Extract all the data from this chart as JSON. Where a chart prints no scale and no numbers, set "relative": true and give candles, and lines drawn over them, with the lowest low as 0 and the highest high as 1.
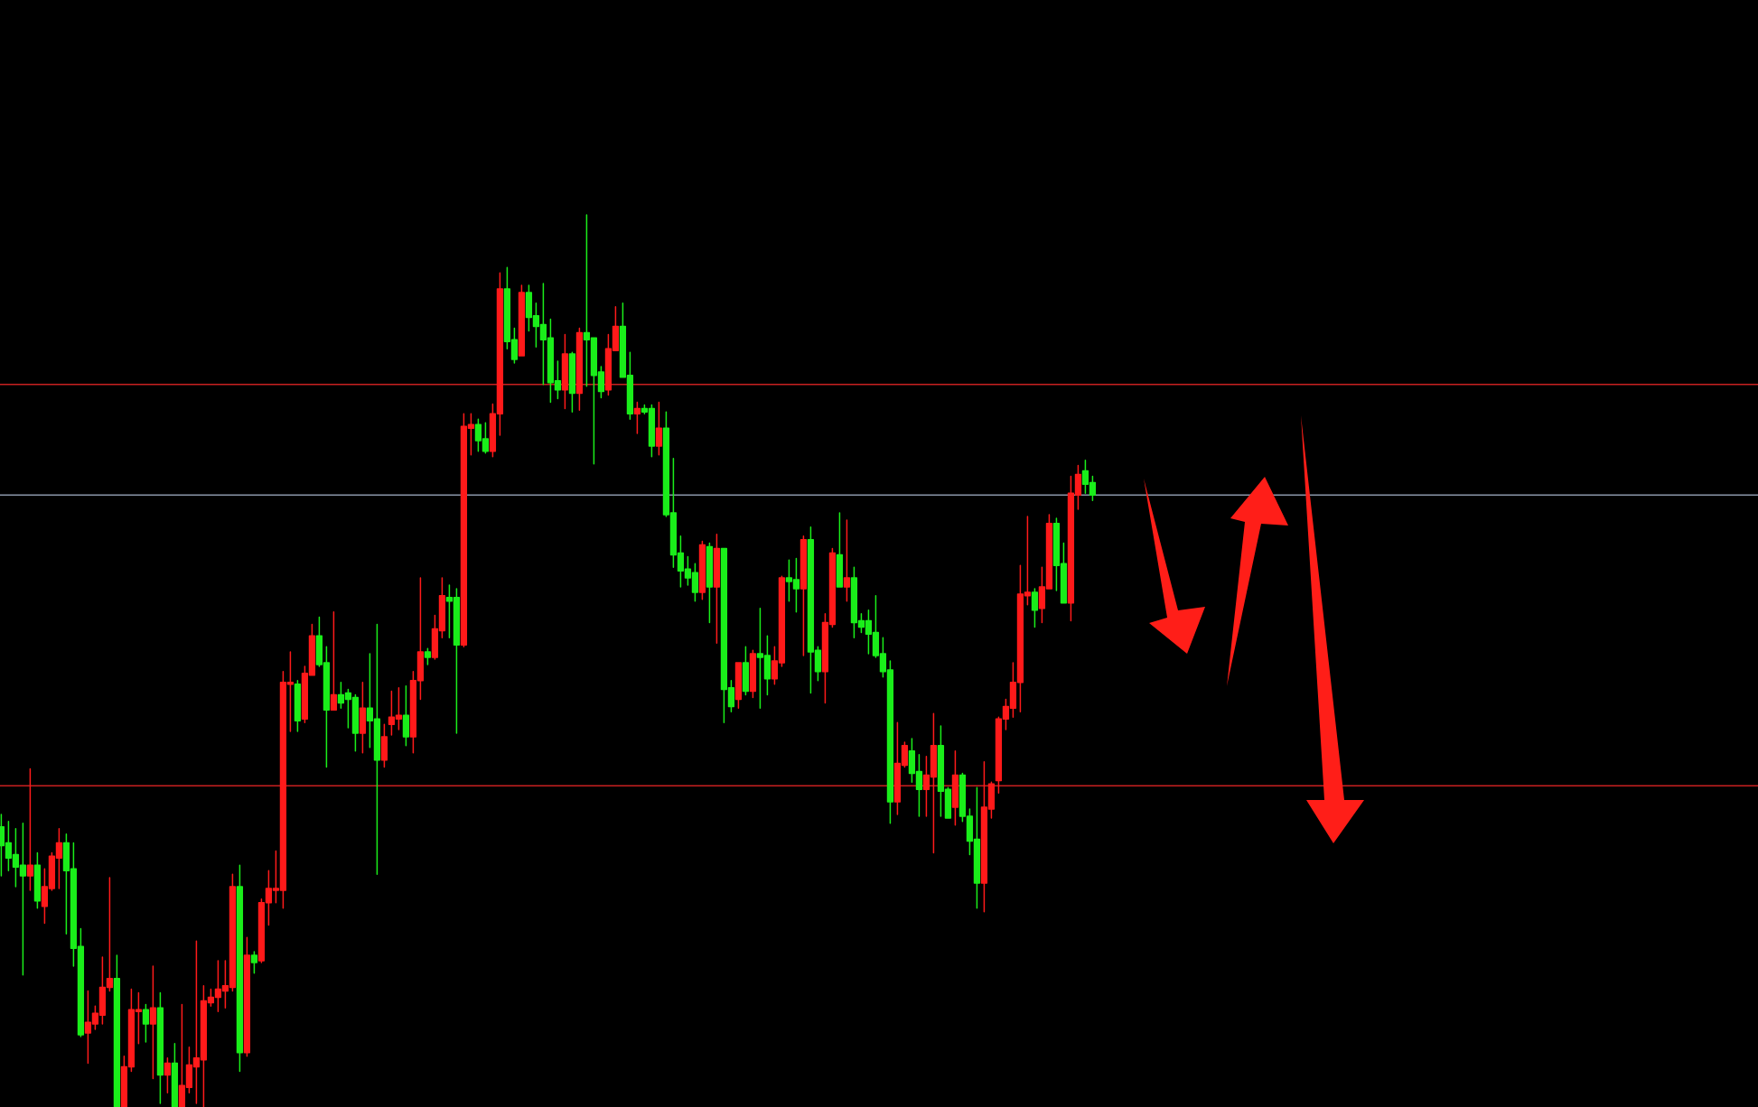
{
  "chart_data": {
    "type": "candlestick",
    "relative": true,
    "categories": [
      null,
      null,
      null,
      null,
      null,
      null,
      null,
      null,
      null,
      null,
      null,
      null,
      null,
      null,
      null,
      null,
      null,
      null,
      null,
      null,
      null,
      null,
      null,
      null,
      null,
      null,
      null,
      null,
      null,
      null,
      null,
      null,
      null,
      null,
      null,
      null,
      null,
      null,
      null,
      null,
      null,
      null,
      null,
      null,
      null,
      null,
      null,
      null,
      null,
      null,
      null,
      null,
      null,
      null,
      null,
      null,
      null,
      null,
      null,
      null,
      null,
      null,
      null,
      null,
      null,
      null,
      null,
      null,
      null,
      null,
      null,
      null,
      null,
      null,
      null,
      null,
      null,
      null,
      null,
      null,
      null,
      null,
      null,
      null,
      null,
      null,
      null,
      null,
      null,
      null,
      null,
      null,
      null,
      null,
      null,
      null,
      null,
      null,
      null,
      null,
      null,
      null,
      null,
      null,
      null,
      null,
      null,
      null,
      null,
      null,
      null,
      null,
      null,
      null,
      null,
      null,
      null,
      null,
      null,
      null,
      null,
      null,
      null,
      null,
      null,
      null,
      null,
      null,
      null,
      null,
      null,
      null,
      null,
      null,
      null,
      null,
      null,
      null,
      null,
      null,
      null,
      null,
      null,
      null,
      null,
      null,
      null,
      null,
      null,
      null,
      null,
      null
    ],
    "ohlc": [
      [
        0.314,
        0.328,
        0.259,
        0.293
      ],
      [
        0.296,
        0.32,
        0.265,
        0.279
      ],
      [
        0.283,
        0.312,
        0.247,
        0.269
      ],
      [
        0.271,
        0.318,
        0.148,
        0.259
      ],
      [
        0.259,
        0.379,
        0.243,
        0.271
      ],
      [
        0.271,
        0.285,
        0.223,
        0.231
      ],
      [
        0.225,
        0.267,
        0.206,
        0.247
      ],
      [
        0.245,
        0.285,
        0.243,
        0.281
      ],
      [
        0.279,
        0.312,
        0.245,
        0.296
      ],
      [
        0.296,
        0.306,
        0.194,
        0.265
      ],
      [
        0.267,
        0.296,
        0.158,
        0.178
      ],
      [
        0.18,
        0.2,
        0.079,
        0.081
      ],
      [
        0.083,
        0.13,
        0.049,
        0.095
      ],
      [
        0.093,
        0.113,
        0.087,
        0.105
      ],
      [
        0.103,
        0.168,
        0.093,
        0.134
      ],
      [
        0.134,
        0.257,
        0.13,
        0.144
      ],
      [
        0.144,
        0.17,
        0,
        0
      ],
      [
        0,
        0.057,
        0,
        0.045
      ],
      [
        0.045,
        0.132,
        0.04,
        0.109
      ],
      [
        0.107,
        0.128,
        0.071,
        0.109
      ],
      [
        0.109,
        0.115,
        0.073,
        0.093
      ],
      [
        0.093,
        0.158,
        0.032,
        0.111
      ],
      [
        0.111,
        0.128,
        0.004,
        0.036
      ],
      [
        0.036,
        0.055,
        0.016,
        0.049
      ],
      [
        0.049,
        0.071,
        0,
        0
      ],
      [
        0,
        0.115,
        0,
        0.024
      ],
      [
        0.022,
        0.067,
        0.016,
        0.047
      ],
      [
        0.045,
        0.186,
        0.004,
        0.055
      ],
      [
        0.053,
        0.136,
        0,
        0.119
      ],
      [
        0.117,
        0.132,
        0.113,
        0.123
      ],
      [
        0.123,
        0.164,
        0.107,
        0.132
      ],
      [
        0.13,
        0.164,
        0.111,
        0.136
      ],
      [
        0.134,
        0.261,
        0.13,
        0.247
      ],
      [
        0.247,
        0.271,
        0.04,
        0.061
      ],
      [
        0.061,
        0.19,
        0.057,
        0.17
      ],
      [
        0.17,
        0.174,
        0.15,
        0.162
      ],
      [
        0.164,
        0.233,
        0.162,
        0.229
      ],
      [
        0.229,
        0.265,
        0.204,
        0.245
      ],
      [
        0.243,
        0.287,
        0.229,
        0.245
      ],
      [
        0.243,
        0.488,
        0.223,
        0.476
      ],
      [
        0.474,
        0.51,
        0.421,
        0.476
      ],
      [
        0.474,
        0.478,
        0.421,
        0.433
      ],
      [
        0.435,
        0.494,
        0.431,
        0.486
      ],
      [
        0.484,
        0.541,
        0.484,
        0.528
      ],
      [
        0.528,
        0.549,
        0.494,
        0.496
      ],
      [
        0.498,
        0.516,
        0.381,
        0.445
      ],
      [
        0.445,
        0.555,
        0.445,
        0.462
      ],
      [
        0.462,
        0.476,
        0.447,
        0.453
      ],
      [
        0.464,
        0.468,
        0.425,
        0.457
      ],
      [
        0.459,
        0.462,
        0.399,
        0.419
      ],
      [
        0.419,
        0.476,
        0.397,
        0.447
      ],
      [
        0.447,
        0.508,
        0.403,
        0.433
      ],
      [
        0.435,
        0.541,
        0.261,
        0.389
      ],
      [
        0.389,
        0.429,
        0.381,
        0.415
      ],
      [
        0.429,
        0.466,
        0.417,
        0.437
      ],
      [
        0.435,
        0.47,
        0.423,
        0.439
      ],
      [
        0.439,
        0.472,
        0.405,
        0.415
      ],
      [
        0.415,
        0.488,
        0.397,
        0.478
      ],
      [
        0.478,
        0.593,
        0.457,
        0.51
      ],
      [
        0.51,
        0.514,
        0.496,
        0.504
      ],
      [
        0.504,
        0.551,
        0.502,
        0.536
      ],
      [
        0.534,
        0.593,
        0.526,
        0.573
      ],
      [
        0.571,
        0.585,
        0.526,
        0.567
      ],
      [
        0.571,
        0.581,
        0.419,
        0.518
      ],
      [
        0.518,
        0.777,
        0.516,
        0.763
      ],
      [
        0.761,
        0.777,
        0.731,
        0.765
      ],
      [
        0.765,
        0.771,
        0.735,
        0.747
      ],
      [
        0.749,
        0.767,
        0.733,
        0.735
      ],
      [
        0.735,
        0.788,
        0.729,
        0.777
      ],
      [
        0.777,
        0.935,
        0.753,
        0.917
      ],
      [
        0.917,
        0.941,
        0.85,
        0.858
      ],
      [
        0.86,
        0.873,
        0.834,
        0.838
      ],
      [
        0.842,
        0.921,
        0.842,
        0.913
      ],
      [
        0.913,
        0.921,
        0.87,
        0.885
      ],
      [
        0.887,
        0.901,
        0.852,
        0.875
      ],
      [
        0.877,
        0.923,
        0.81,
        0.86
      ],
      [
        0.862,
        0.883,
        0.79,
        0.812
      ],
      [
        0.814,
        0.836,
        0.794,
        0.804
      ],
      [
        0.804,
        0.866,
        0.783,
        0.844
      ],
      [
        0.844,
        0.846,
        0.779,
        0.8
      ],
      [
        0.8,
        0.873,
        0.781,
        0.868
      ],
      [
        0.868,
        1.0,
        0.808,
        0.86
      ],
      [
        0.862,
        0.862,
        0.721,
        0.82
      ],
      [
        0.824,
        0.83,
        0.795,
        0.802
      ],
      [
        0.804,
        0.866,
        0.798,
        0.85
      ],
      [
        0.848,
        0.897,
        0.848,
        0.875
      ],
      [
        0.875,
        0.901,
        0.818,
        0.818
      ],
      [
        0.82,
        0.846,
        0.771,
        0.777
      ],
      [
        0.777,
        0.79,
        0.755,
        0.783
      ],
      [
        0.783,
        0.787,
        0.777,
        0.779
      ],
      [
        0.783,
        0.787,
        0.729,
        0.741
      ],
      [
        0.741,
        0.79,
        0.731,
        0.761
      ],
      [
        0.761,
        0.779,
        0.662,
        0.664
      ],
      [
        0.666,
        0.727,
        0.605,
        0.619
      ],
      [
        0.621,
        0.64,
        0.583,
        0.601
      ],
      [
        0.603,
        0.617,
        0.585,
        0.593
      ],
      [
        0.599,
        0.609,
        0.567,
        0.577
      ],
      [
        0.577,
        0.634,
        0.569,
        0.63
      ],
      [
        0.628,
        0.632,
        0.543,
        0.583
      ],
      [
        0.583,
        0.642,
        0.52,
        0.626
      ],
      [
        0.626,
        0.626,
        0.431,
        0.468
      ],
      [
        0.47,
        0.478,
        0.443,
        0.449
      ],
      [
        0.457,
        0.498,
        0.447,
        0.498
      ],
      [
        0.498,
        0.516,
        0.462,
        0.466
      ],
      [
        0.466,
        0.512,
        0.459,
        0.508
      ],
      [
        0.508,
        0.559,
        0.447,
        0.504
      ],
      [
        0.506,
        0.528,
        0.462,
        0.48
      ],
      [
        0.48,
        0.516,
        0.474,
        0.5
      ],
      [
        0.498,
        0.595,
        0.494,
        0.593
      ],
      [
        0.593,
        0.613,
        0.567,
        0.589
      ],
      [
        0.591,
        0.615,
        0.555,
        0.581
      ],
      [
        0.581,
        0.64,
        0.506,
        0.636
      ],
      [
        0.636,
        0.65,
        0.464,
        0.51
      ],
      [
        0.512,
        0.516,
        0.478,
        0.488
      ],
      [
        0.488,
        0.553,
        0.453,
        0.543
      ],
      [
        0.541,
        0.626,
        0.538,
        0.621
      ],
      [
        0.619,
        0.666,
        0.583,
        0.583
      ],
      [
        0.583,
        0.658,
        0.567,
        0.593
      ],
      [
        0.593,
        0.605,
        0.526,
        0.543
      ],
      [
        0.545,
        0.553,
        0.532,
        0.538
      ],
      [
        0.545,
        0.557,
        0.508,
        0.53
      ],
      [
        0.532,
        0.573,
        0.504,
        0.506
      ],
      [
        0.508,
        0.526,
        0.482,
        0.488
      ],
      [
        0.49,
        0.5,
        0.318,
        0.342
      ],
      [
        0.342,
        0.431,
        0.328,
        0.385
      ],
      [
        0.383,
        0.409,
        0.381,
        0.405
      ],
      [
        0.399,
        0.413,
        0.364,
        0.374
      ],
      [
        0.376,
        0.395,
        0.326,
        0.356
      ],
      [
        0.356,
        0.393,
        0.326,
        0.372
      ],
      [
        0.37,
        0.441,
        0.285,
        0.405
      ],
      [
        0.405,
        0.427,
        0.326,
        0.354
      ],
      [
        0.356,
        0.358,
        0.324,
        0.324
      ],
      [
        0.336,
        0.399,
        0.316,
        0.372
      ],
      [
        0.372,
        0.374,
        0.32,
        0.326
      ],
      [
        0.326,
        0.334,
        0.283,
        0.298
      ],
      [
        0.3,
        0.358,
        0.223,
        0.251
      ],
      [
        0.251,
        0.387,
        0.219,
        0.336
      ],
      [
        0.334,
        0.364,
        0.324,
        0.362
      ],
      [
        0.366,
        0.437,
        0.352,
        0.435
      ],
      [
        0.435,
        0.457,
        0.423,
        0.449
      ],
      [
        0.447,
        0.498,
        0.437,
        0.476
      ],
      [
        0.476,
        0.607,
        0.443,
        0.575
      ],
      [
        0.573,
        0.662,
        0.563,
        0.577
      ],
      [
        0.577,
        0.581,
        0.538,
        0.557
      ],
      [
        0.559,
        0.605,
        0.543,
        0.583
      ],
      [
        0.581,
        0.664,
        0.581,
        0.654
      ],
      [
        0.654,
        0.66,
        0.579,
        0.607
      ],
      [
        0.609,
        0.632,
        0.565,
        0.565
      ],
      [
        0.565,
        0.707,
        0.545,
        0.688
      ],
      [
        0.686,
        0.719,
        0.67,
        0.709
      ],
      [
        0.713,
        0.725,
        0.688,
        0.698
      ],
      [
        0.7,
        0.707,
        0.68,
        0.686
      ]
    ],
    "colors": [
      "#1aee1a",
      "#1aee1a",
      "#1aee1a",
      "#1aee1a",
      "#ff1a1a",
      "#1aee1a",
      "#ff1a1a",
      "#ff1a1a",
      "#ff1a1a",
      "#1aee1a",
      "#1aee1a",
      "#1aee1a",
      "#ff1a1a",
      "#ff1a1a",
      "#ff1a1a",
      "#ff1a1a",
      "#1aee1a",
      "#ff1a1a",
      "#ff1a1a",
      "#ff1a1a",
      "#1aee1a",
      "#ff1a1a",
      "#1aee1a",
      "#ff1a1a",
      "#1aee1a",
      "#ff1a1a",
      "#ff1a1a",
      "#ff1a1a",
      "#ff1a1a",
      "#ff1a1a",
      "#ff1a1a",
      "#ff1a1a",
      "#ff1a1a",
      "#1aee1a",
      "#ff1a1a",
      "#1aee1a",
      "#ff1a1a",
      "#ff1a1a",
      "#ff1a1a",
      "#ff1a1a",
      "#ff1a1a",
      "#1aee1a",
      "#ff1a1a",
      "#ff1a1a",
      "#1aee1a",
      "#1aee1a",
      "#ff1a1a",
      "#1aee1a",
      "#1aee1a",
      "#1aee1a",
      "#ff1a1a",
      "#1aee1a",
      "#1aee1a",
      "#ff1a1a",
      "#ff1a1a",
      "#ff1a1a",
      "#1aee1a",
      "#ff1a1a",
      "#ff1a1a",
      "#1aee1a",
      "#ff1a1a",
      "#ff1a1a",
      "#1aee1a",
      "#1aee1a",
      "#ff1a1a",
      "#ff1a1a",
      "#1aee1a",
      "#1aee1a",
      "#ff1a1a",
      "#ff1a1a",
      "#1aee1a",
      "#1aee1a",
      "#ff1a1a",
      "#1aee1a",
      "#1aee1a",
      "#1aee1a",
      "#1aee1a",
      "#1aee1a",
      "#ff1a1a",
      "#1aee1a",
      "#ff1a1a",
      "#1aee1a",
      "#1aee1a",
      "#1aee1a",
      "#ff1a1a",
      "#ff1a1a",
      "#1aee1a",
      "#1aee1a",
      "#ff1a1a",
      "#1aee1a",
      "#1aee1a",
      "#ff1a1a",
      "#1aee1a",
      "#1aee1a",
      "#1aee1a",
      "#1aee1a",
      "#1aee1a",
      "#ff1a1a",
      "#1aee1a",
      "#ff1a1a",
      "#1aee1a",
      "#1aee1a",
      "#ff1a1a",
      "#1aee1a",
      "#ff1a1a",
      "#1aee1a",
      "#1aee1a",
      "#ff1a1a",
      "#ff1a1a",
      "#1aee1a",
      "#1aee1a",
      "#ff1a1a",
      "#1aee1a",
      "#1aee1a",
      "#ff1a1a",
      "#ff1a1a",
      "#1aee1a",
      "#ff1a1a",
      "#1aee1a",
      "#1aee1a",
      "#1aee1a",
      "#1aee1a",
      "#1aee1a",
      "#1aee1a",
      "#ff1a1a",
      "#ff1a1a",
      "#1aee1a",
      "#1aee1a",
      "#ff1a1a",
      "#ff1a1a",
      "#1aee1a",
      "#1aee1a",
      "#ff1a1a",
      "#1aee1a",
      "#1aee1a",
      "#1aee1a",
      "#ff1a1a",
      "#ff1a1a",
      "#ff1a1a",
      "#ff1a1a",
      "#ff1a1a",
      "#ff1a1a",
      "#ff1a1a",
      "#1aee1a",
      "#ff1a1a",
      "#ff1a1a",
      "#1aee1a",
      "#1aee1a",
      "#ff1a1a",
      "#ff1a1a",
      "#1aee1a",
      "#1aee1a"
    ],
    "ref_lines": [
      {
        "axis": "y",
        "value": 0.81,
        "color": "#c82020"
      },
      {
        "axis": "y",
        "value": 0.686,
        "color": "#8a96a8"
      },
      {
        "axis": "y",
        "value": 0.36,
        "color": "#c82020"
      }
    ]
  }
}
